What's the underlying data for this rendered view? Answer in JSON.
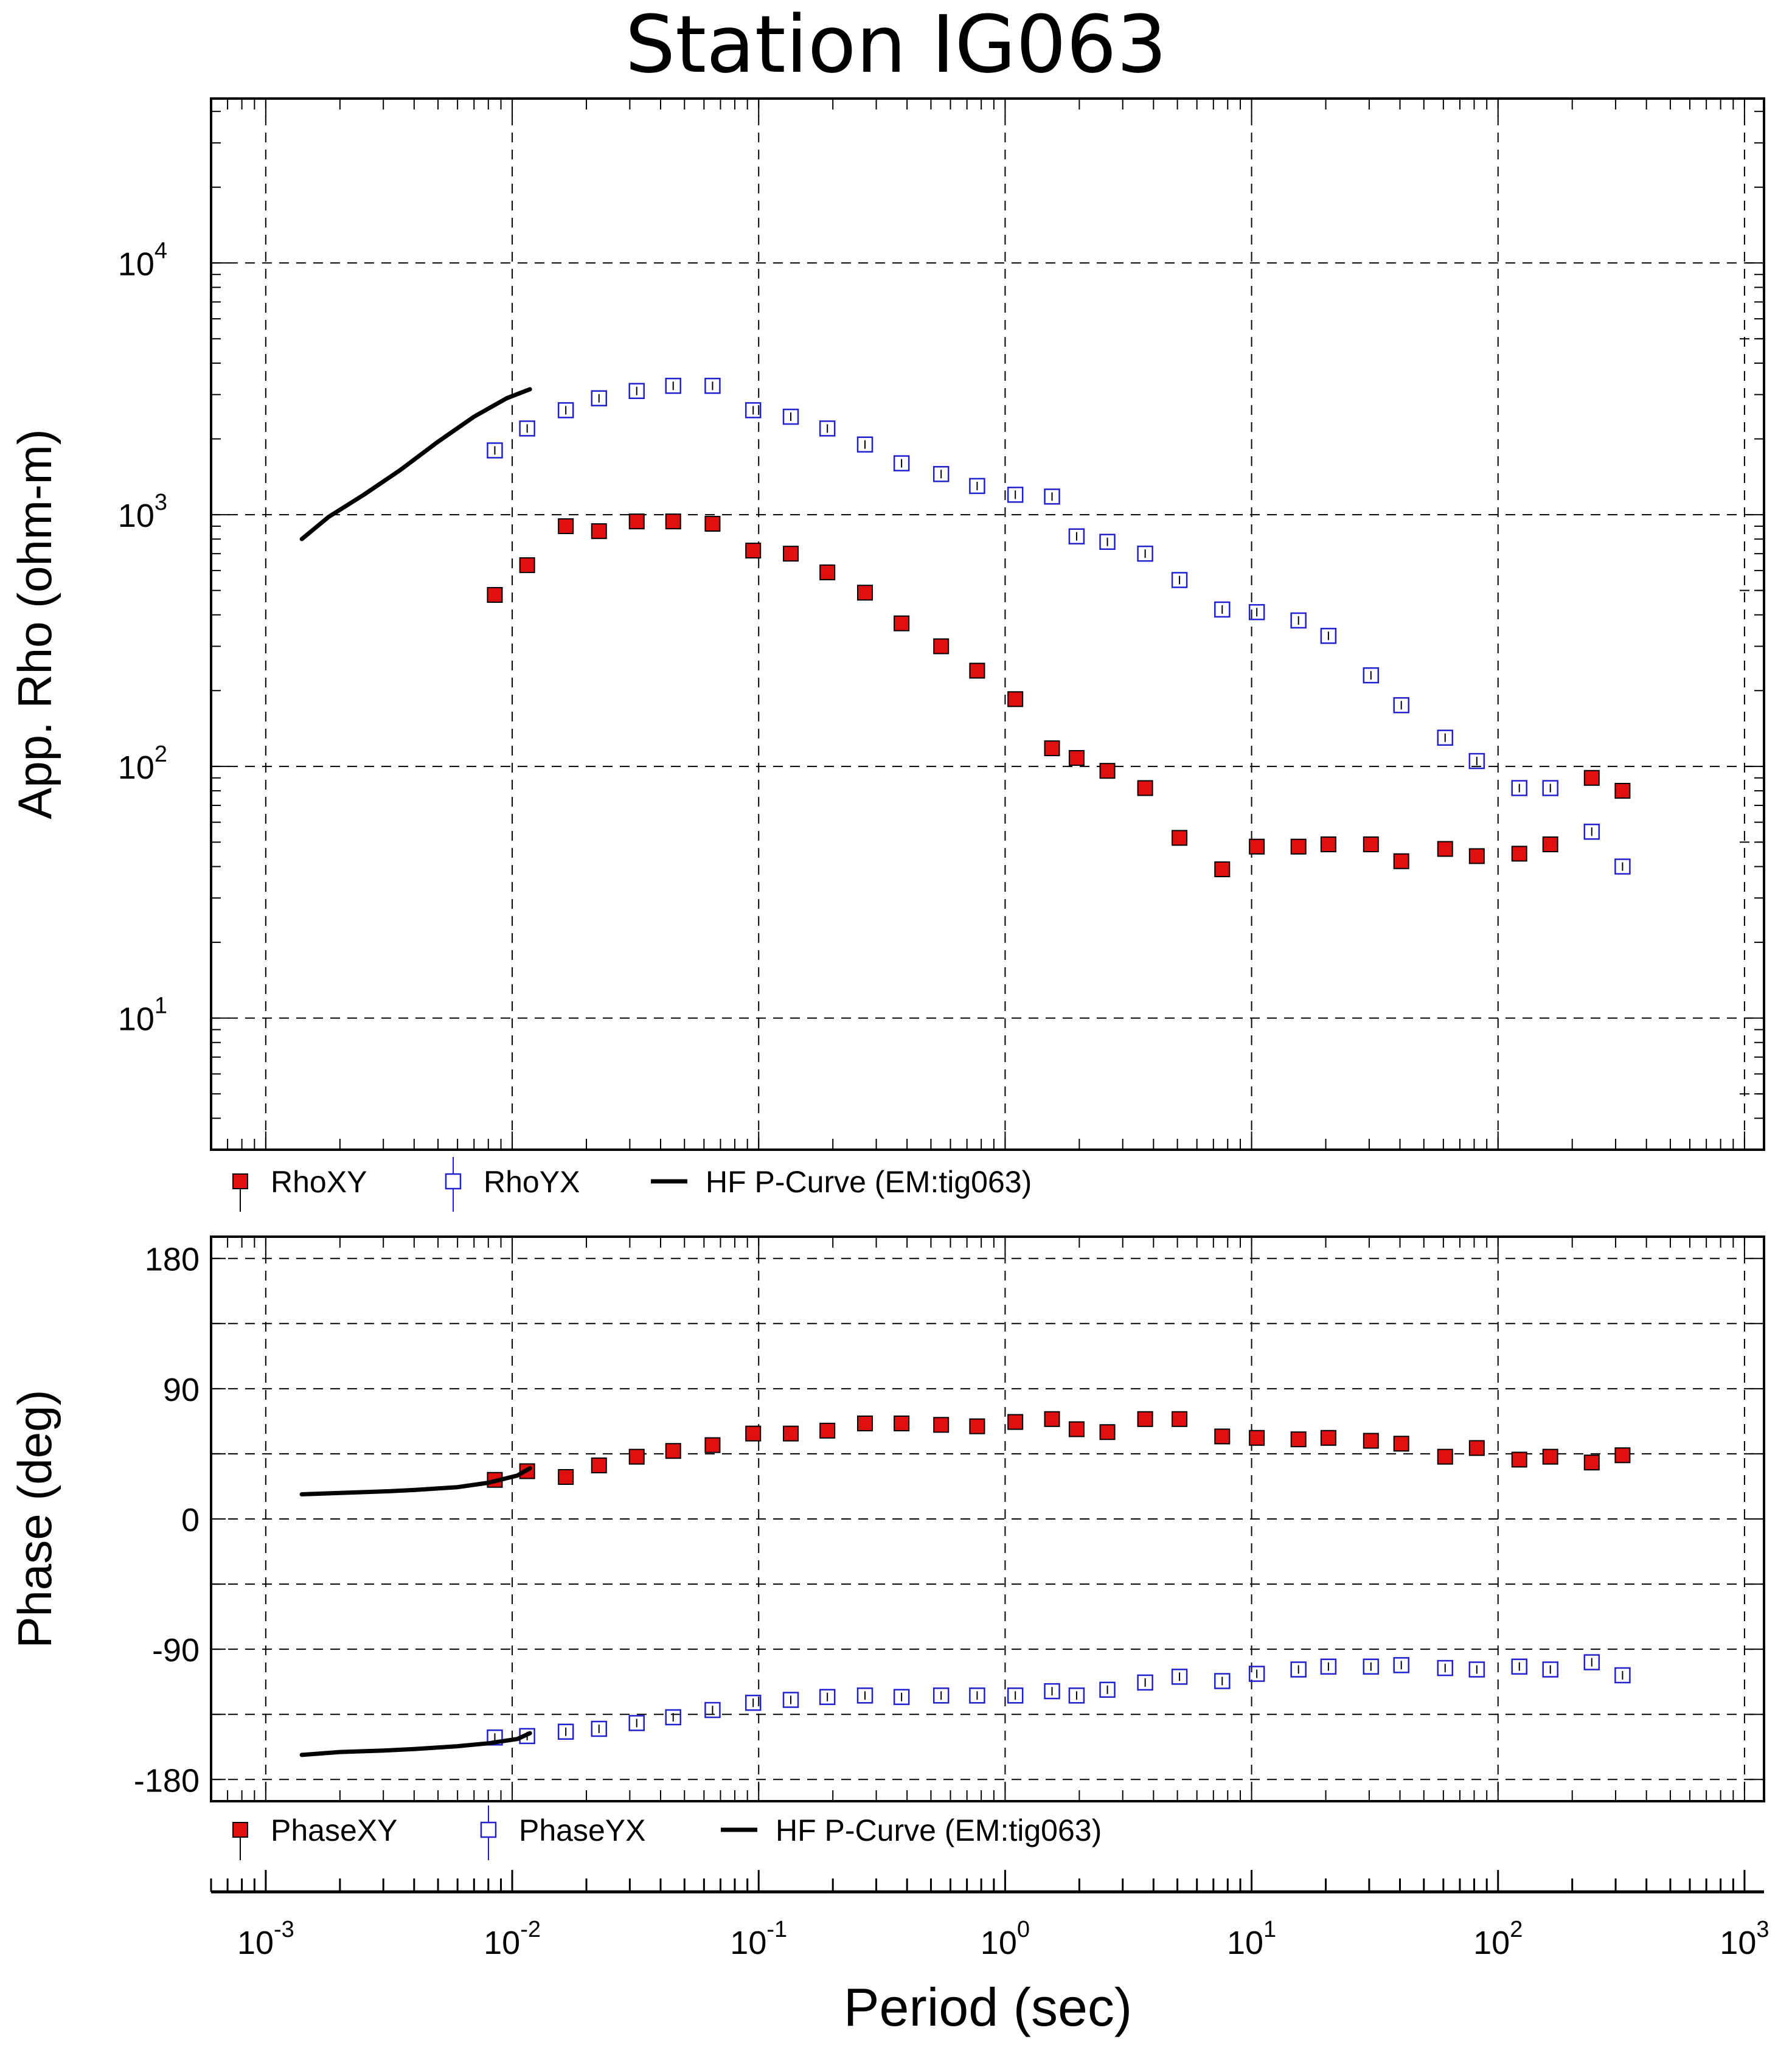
{
  "chart_data": [
    {
      "type": "scatter",
      "title": "Station IG063",
      "xlabel": "Period (sec)",
      "ylabel": "App. Rho (ohm-m)",
      "xscale": "log",
      "yscale": "log",
      "xlim": [
        0.0006,
        1200
      ],
      "ylim": [
        3,
        45000
      ],
      "y_tick_labels": [
        {
          "value": 10,
          "base": "10",
          "exp": "1"
        },
        {
          "value": 100,
          "base": "10",
          "exp": "2"
        },
        {
          "value": 1000,
          "base": "10",
          "exp": "3"
        },
        {
          "value": 10000,
          "base": "10",
          "exp": "4"
        }
      ],
      "grid": true,
      "legend_position": "below plot",
      "series": [
        {
          "name": "RhoXY",
          "marker": "filled-square",
          "color": "#e01010",
          "x": [
            0.0085,
            0.0115,
            0.0165,
            0.0225,
            0.032,
            0.045,
            0.065,
            0.095,
            0.135,
            0.19,
            0.27,
            0.38,
            0.55,
            0.77,
            1.1,
            1.55,
            1.95,
            2.6,
            3.7,
            5.1,
            7.6,
            10.5,
            15.5,
            20.5,
            30.5,
            40.5,
            61,
            82,
            122,
            163,
            240,
            320
          ],
          "y": [
            480,
            630,
            900,
            860,
            940,
            940,
            920,
            720,
            700,
            590,
            490,
            370,
            300,
            240,
            185,
            118,
            108,
            96,
            82,
            52,
            39,
            48,
            48,
            49,
            49,
            42,
            47,
            44,
            45,
            49,
            90,
            80
          ]
        },
        {
          "name": "RhoYX",
          "marker": "open-square",
          "color": "#2020d0",
          "x": [
            0.0085,
            0.0115,
            0.0165,
            0.0225,
            0.032,
            0.045,
            0.065,
            0.095,
            0.135,
            0.19,
            0.27,
            0.38,
            0.55,
            0.77,
            1.1,
            1.55,
            1.95,
            2.6,
            3.7,
            5.1,
            7.6,
            10.5,
            15.5,
            20.5,
            30.5,
            40.5,
            61,
            82,
            122,
            163,
            240,
            320
          ],
          "y": [
            1800,
            2200,
            2600,
            2900,
            3100,
            3250,
            3250,
            2600,
            2450,
            2200,
            1900,
            1600,
            1450,
            1300,
            1200,
            1180,
            820,
            780,
            700,
            550,
            420,
            410,
            380,
            330,
            230,
            175,
            130,
            105,
            82,
            82,
            55,
            40
          ]
        },
        {
          "name": "HF P-Curve (EM:tig063)",
          "marker": "line",
          "color": "#000000",
          "x": [
            0.0014,
            0.0018,
            0.0025,
            0.0035,
            0.005,
            0.007,
            0.0095,
            0.0118
          ],
          "y": [
            800,
            980,
            1200,
            1500,
            1950,
            2450,
            2900,
            3150
          ]
        }
      ]
    },
    {
      "type": "scatter",
      "xlabel": "Period (sec)",
      "ylabel": "Phase (deg)",
      "xscale": "log",
      "xlim": [
        0.0006,
        1200
      ],
      "ylim": [
        -195,
        195
      ],
      "y_tick_labels": [
        "180",
        "90",
        "0",
        "-90",
        "-180"
      ],
      "x_tick_labels": [
        {
          "value": 0.001,
          "base": "10",
          "exp": "-3"
        },
        {
          "value": 0.01,
          "base": "10",
          "exp": "-2"
        },
        {
          "value": 0.1,
          "base": "10",
          "exp": "-1"
        },
        {
          "value": 1,
          "base": "10",
          "exp": "0"
        },
        {
          "value": 10,
          "base": "10",
          "exp": "1"
        },
        {
          "value": 100,
          "base": "10",
          "exp": "2"
        },
        {
          "value": 1000,
          "base": "10",
          "exp": "3"
        }
      ],
      "grid": true,
      "legend_position": "below plot",
      "series": [
        {
          "name": "PhaseXY",
          "marker": "filled-square",
          "color": "#e01010",
          "x": [
            0.0085,
            0.0115,
            0.0165,
            0.0225,
            0.032,
            0.045,
            0.065,
            0.095,
            0.135,
            0.19,
            0.27,
            0.38,
            0.55,
            0.77,
            1.1,
            1.55,
            1.95,
            2.6,
            3.7,
            5.1,
            7.6,
            10.5,
            15.5,
            20.5,
            30.5,
            40.5,
            61,
            82,
            122,
            163,
            240,
            320
          ],
          "y": [
            27,
            33,
            29,
            37,
            43,
            47,
            51,
            59,
            59,
            61,
            66,
            66,
            65,
            64,
            67,
            69,
            62,
            60,
            69,
            69,
            57,
            56,
            55,
            56,
            54,
            52,
            43,
            49,
            41,
            43,
            39,
            44
          ]
        },
        {
          "name": "PhaseYX",
          "marker": "open-square",
          "color": "#2020d0",
          "x": [
            0.0085,
            0.0115,
            0.0165,
            0.0225,
            0.032,
            0.045,
            0.065,
            0.095,
            0.135,
            0.19,
            0.27,
            0.38,
            0.55,
            0.77,
            1.1,
            1.55,
            1.95,
            2.6,
            3.7,
            5.1,
            7.6,
            10.5,
            15.5,
            20.5,
            30.5,
            40.5,
            61,
            82,
            122,
            163,
            240,
            320
          ],
          "y": [
            -151,
            -150,
            -147,
            -145,
            -141,
            -137,
            -132,
            -127,
            -125,
            -123,
            -122,
            -123,
            -122,
            -122,
            -122,
            -119,
            -122,
            -118,
            -113,
            -109,
            -112,
            -107,
            -104,
            -102,
            -102,
            -101,
            -103,
            -104,
            -102,
            -104,
            -99,
            -108
          ]
        },
        {
          "name": "HF P-Curve (EM:tig063)",
          "marker": "line",
          "color": "#000000",
          "x": [
            0.0014,
            0.002,
            0.003,
            0.004,
            0.006,
            0.008,
            0.0105,
            0.0118
          ],
          "y": [
            17,
            18,
            19,
            20,
            22,
            25,
            30,
            35
          ]
        },
        {
          "name": "HF P-Curve (EM:tig063)",
          "marker": "line",
          "color": "#000000",
          "x": [
            0.0014,
            0.002,
            0.003,
            0.004,
            0.006,
            0.008,
            0.0105,
            0.0118
          ],
          "y": [
            -163,
            -161,
            -160,
            -159,
            -157,
            -155,
            -152,
            -148
          ]
        }
      ]
    }
  ],
  "legend_rho": [
    {
      "label": "RhoXY"
    },
    {
      "label": "RhoYX"
    },
    {
      "label": "HF P-Curve (EM:tig063)"
    }
  ],
  "legend_phase": [
    {
      "label": "PhaseXY"
    },
    {
      "label": "PhaseYX"
    },
    {
      "label": "HF P-Curve (EM:tig063)"
    }
  ],
  "colors": {
    "xy": "#e01010",
    "yx": "#2020d0",
    "curve": "#000000"
  }
}
